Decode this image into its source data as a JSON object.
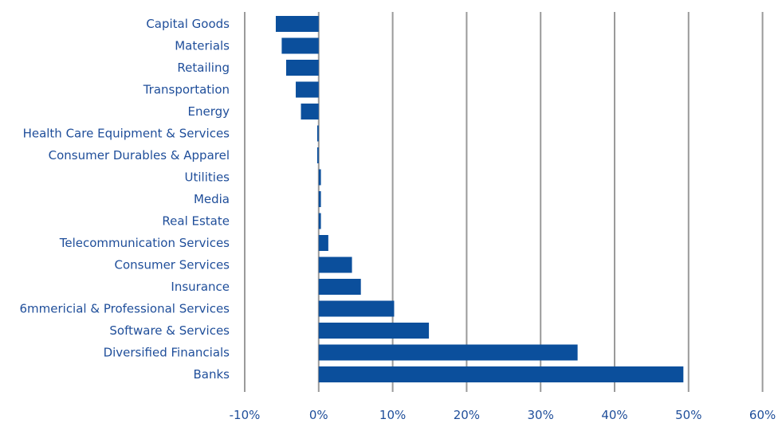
{
  "chart_data": {
    "type": "bar",
    "orientation": "horizontal",
    "categories": [
      "Capital Goods",
      "Materials",
      "Retailing",
      "Transportation",
      "Energy",
      "Health Care Equipment & Services",
      "Consumer Durables & Apparel",
      "Utilities",
      "Media",
      "Real Estate",
      "Telecommunication Services",
      "Consumer Services",
      "Insurance",
      "6mmericial & Professional Services",
      "Software & Services",
      "Diversified Financials",
      "Banks"
    ],
    "values": [
      -5.8,
      -5.0,
      -4.4,
      -3.1,
      -2.4,
      -0.2,
      -0.2,
      0.3,
      0.3,
      0.3,
      1.3,
      4.5,
      5.7,
      10.2,
      14.9,
      35.0,
      49.3
    ],
    "x_ticks": [
      "-10%",
      "0%",
      "10%",
      "20%",
      "30%",
      "40%",
      "50%",
      "60%"
    ],
    "xlim": [
      -10,
      60
    ],
    "unit": "%",
    "grid": true,
    "legend": "none",
    "colors": {
      "bar": "#0b4f9c",
      "label": "#1f4e9a",
      "grid": "#9a9a9a",
      "background": "#ffffff"
    }
  }
}
